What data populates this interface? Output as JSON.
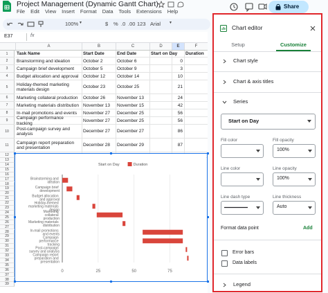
{
  "header": {
    "title": "Project Management (Dynamic Gantt Chart)",
    "menu": [
      "File",
      "Edit",
      "View",
      "Insert",
      "Format",
      "Data",
      "Tools",
      "Extensions",
      "Help"
    ],
    "share": "Share"
  },
  "toolbar": {
    "zoom": "100%",
    "items": [
      "$",
      "%",
      ".0",
      ".00",
      "123"
    ],
    "font": "Arial"
  },
  "formula_bar": {
    "cell": "E37"
  },
  "sheet": {
    "columns": [
      "A",
      "B",
      "C",
      "D",
      "E",
      "F"
    ],
    "row_numbers": [
      1,
      2,
      3,
      4,
      5,
      6,
      7,
      8,
      9,
      10,
      11,
      12,
      13,
      14,
      15,
      16,
      17,
      18,
      19,
      20,
      21,
      22,
      23,
      24,
      25,
      26,
      27,
      28,
      29,
      30,
      31,
      32,
      33,
      34,
      35,
      36,
      37,
      38,
      39
    ],
    "header": [
      "Task Name",
      "Start Date",
      "End Date",
      "Start on Day",
      "Duration"
    ],
    "rows": [
      [
        "Brainstorming and ideation",
        "October 2",
        "October 6",
        0
      ],
      [
        "Campaign brief development",
        "October 5",
        "October 9",
        3
      ],
      [
        "Budget allocation and approval",
        "October 12",
        "October 14",
        10
      ],
      [
        "Holiday-themed marketing materials design",
        "October 23",
        "October 25",
        21
      ],
      [
        "Marketing collateral production",
        "October 26",
        "November 13",
        24
      ],
      [
        "Marketing materials distribution",
        "November 13",
        "November 15",
        42
      ],
      [
        "In-mail promotions and events",
        "November 27",
        "December 25",
        56
      ],
      [
        "Campaign performance tracking",
        "November 27",
        "December 25",
        56
      ],
      [
        "Post-campaign survey and analysis",
        "December 27",
        "December 27",
        86
      ],
      [
        "Campaign report preparation and presentation",
        "December 28",
        "December 29",
        87
      ]
    ]
  },
  "chart_data": {
    "type": "bar",
    "orientation": "horizontal",
    "stacked": true,
    "categories": [
      "Brainstorming and ideation",
      "Campaign brief development",
      "Budget allocation and approval",
      "Holiday-themed marketing materials design",
      "Marketing collateral production",
      "Marketing materials distribution",
      "In-mail promotions and events",
      "Campaign performance tracking",
      "Post-campaign survey and analysis",
      "Campaign report preparation and presentation"
    ],
    "series": [
      {
        "name": "Start on Day",
        "color": "transparent",
        "values": [
          0,
          3,
          10,
          21,
          24,
          42,
          56,
          56,
          86,
          87
        ]
      },
      {
        "name": "Duration",
        "color": "#d9453b",
        "values": [
          4,
          4,
          2,
          2,
          18,
          2,
          28,
          28,
          1,
          1
        ]
      }
    ],
    "xlim": [
      0,
      95
    ],
    "xticks": [
      0,
      25,
      50,
      75
    ],
    "grid": true,
    "legend": "top"
  },
  "editor": {
    "title": "Chart editor",
    "tabs": [
      "Setup",
      "Customize"
    ],
    "sections": [
      "Chart style",
      "Chart & axis titles",
      "Series"
    ],
    "series_select": "Start on Day",
    "fields": [
      {
        "label": "Fill color"
      },
      {
        "label": "Fill opacity",
        "value": "100%"
      },
      {
        "label": "Line color"
      },
      {
        "label": "Line opacity",
        "value": "100%"
      },
      {
        "label": "Line dash type"
      },
      {
        "label": "Line thickness",
        "value": "Auto"
      }
    ],
    "format_data_point": "Format data point",
    "add": "Add",
    "checkboxes": [
      "Error bars",
      "Data labels"
    ],
    "legend": "Legend"
  }
}
